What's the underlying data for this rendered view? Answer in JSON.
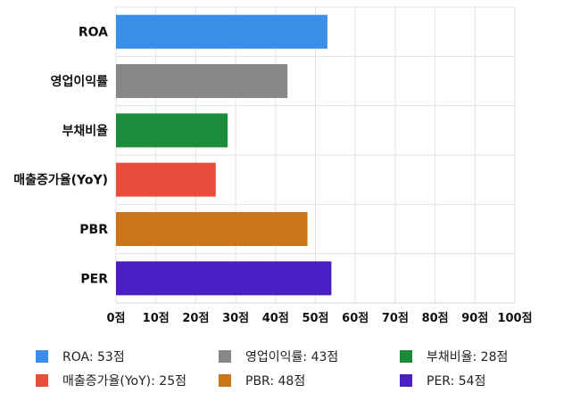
{
  "chart_data": {
    "type": "bar",
    "orientation": "horizontal",
    "categories": [
      "ROA",
      "영업이익률",
      "부채비율",
      "매출증가율(YoY)",
      "PBR",
      "PER"
    ],
    "values": [
      53,
      43,
      28,
      25,
      48,
      54
    ],
    "colors": [
      "#3b8fe8",
      "#888888",
      "#1d8c3a",
      "#ea4c3b",
      "#cc7418",
      "#4a1ec4"
    ],
    "xlim": [
      0,
      100
    ],
    "x_ticks": [
      0,
      10,
      20,
      30,
      40,
      50,
      60,
      70,
      80,
      90,
      100
    ],
    "tick_suffix": "점",
    "grid": true,
    "legend_position": "bottom",
    "legend": [
      {
        "label": "ROA: 53점",
        "color": "#3b8fe8"
      },
      {
        "label": "영업이익률: 43점",
        "color": "#888888"
      },
      {
        "label": "부채비율: 28점",
        "color": "#1d8c3a"
      },
      {
        "label": "매출증가율(YoY): 25점",
        "color": "#ea4c3b"
      },
      {
        "label": "PBR: 48점",
        "color": "#cc7418"
      },
      {
        "label": "PER: 54점",
        "color": "#4a1ec4"
      }
    ]
  }
}
